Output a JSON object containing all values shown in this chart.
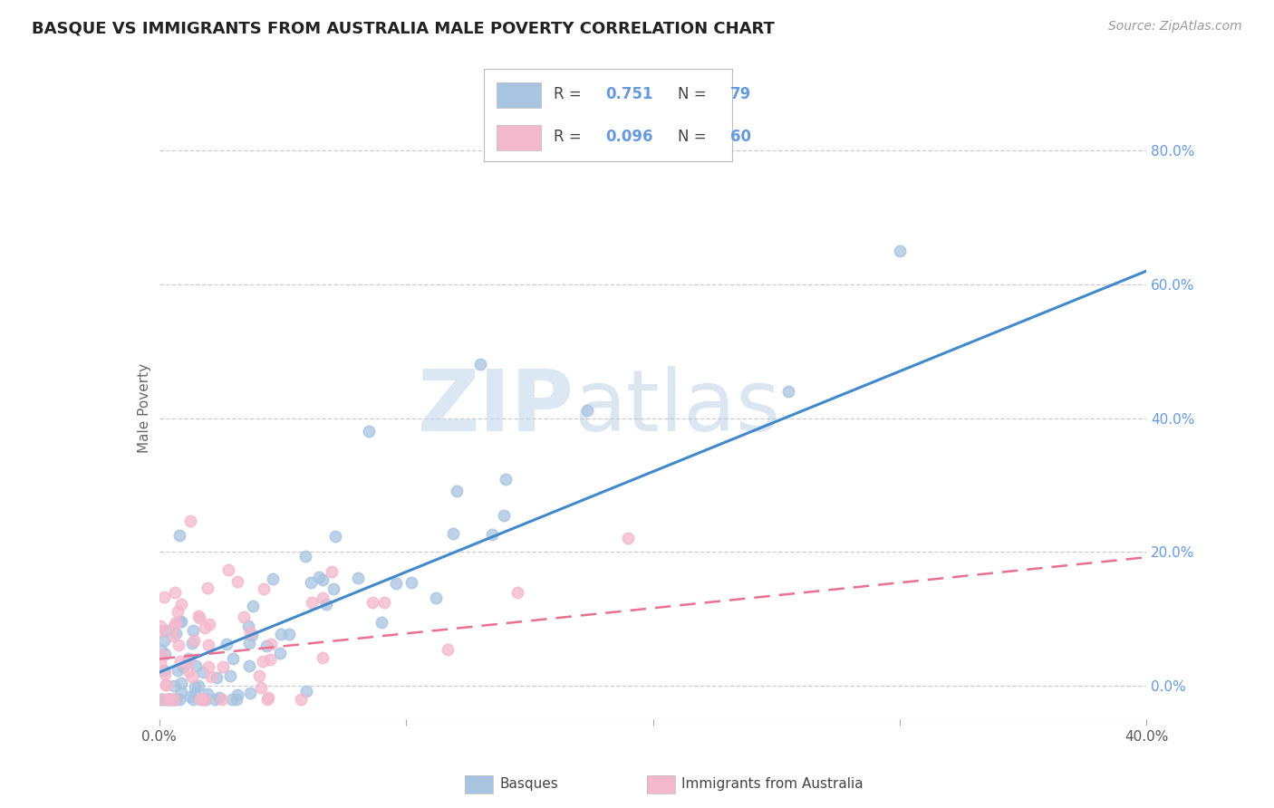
{
  "title": "BASQUE VS IMMIGRANTS FROM AUSTRALIA MALE POVERTY CORRELATION CHART",
  "source": "Source: ZipAtlas.com",
  "ylabel": "Male Poverty",
  "xlim": [
    0.0,
    0.4
  ],
  "ylim": [
    -0.05,
    0.88
  ],
  "basque_R": 0.751,
  "basque_N": 79,
  "immigrants_R": 0.096,
  "immigrants_N": 60,
  "basque_color": "#a8c4e0",
  "immigrants_color": "#f4b8cc",
  "basque_line_color": "#4488cc",
  "immigrants_line_color": "#e87090",
  "watermark_ZIP": "ZIP",
  "watermark_atlas": "atlas",
  "background_color": "#ffffff",
  "grid_color": "#cccccc",
  "right_tick_color": "#6699dd",
  "title_fontsize": 13,
  "source_fontsize": 10,
  "ylabel_fontsize": 11,
  "tick_fontsize": 11,
  "legend_fontsize": 12,
  "basque_line_intercept": 0.02,
  "basque_line_slope": 1.5,
  "immigrants_line_intercept": 0.04,
  "immigrants_line_slope": 0.38
}
